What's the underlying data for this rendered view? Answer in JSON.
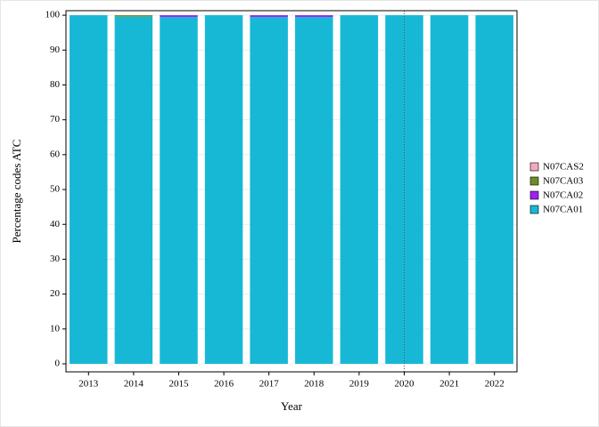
{
  "chart_data": {
    "type": "stacked_bar",
    "x_label": "Year",
    "y_label": "Percentage codes ATC",
    "categories": [
      "2013",
      "2014",
      "2015",
      "2016",
      "2017",
      "2018",
      "2019",
      "2020",
      "2021",
      "2022"
    ],
    "series": [
      {
        "name": "N07CA01",
        "color": "#17b8d6",
        "values": [
          100,
          99.6,
          99.5,
          100,
          99.5,
          99.5,
          100,
          100,
          100,
          100
        ]
      },
      {
        "name": "N07CA02",
        "color": "#a020f0",
        "values": [
          0,
          0,
          0.5,
          0,
          0.5,
          0.5,
          0,
          0,
          0,
          0
        ]
      },
      {
        "name": "N07CA03",
        "color": "#6b8e23",
        "values": [
          0,
          0.4,
          0,
          0,
          0,
          0,
          0,
          0,
          0,
          0
        ]
      },
      {
        "name": "N07CAS2",
        "color": "#f4a9bc",
        "values": [
          0,
          0,
          0,
          0,
          0,
          0,
          0,
          0,
          0,
          0
        ]
      }
    ],
    "ylim": [
      -2.3,
      101.3
    ],
    "yticks": [
      0,
      10,
      20,
      30,
      40,
      50,
      60,
      70,
      80,
      90,
      100
    ],
    "grid": true,
    "legend": "right",
    "reference_line": "2020"
  }
}
